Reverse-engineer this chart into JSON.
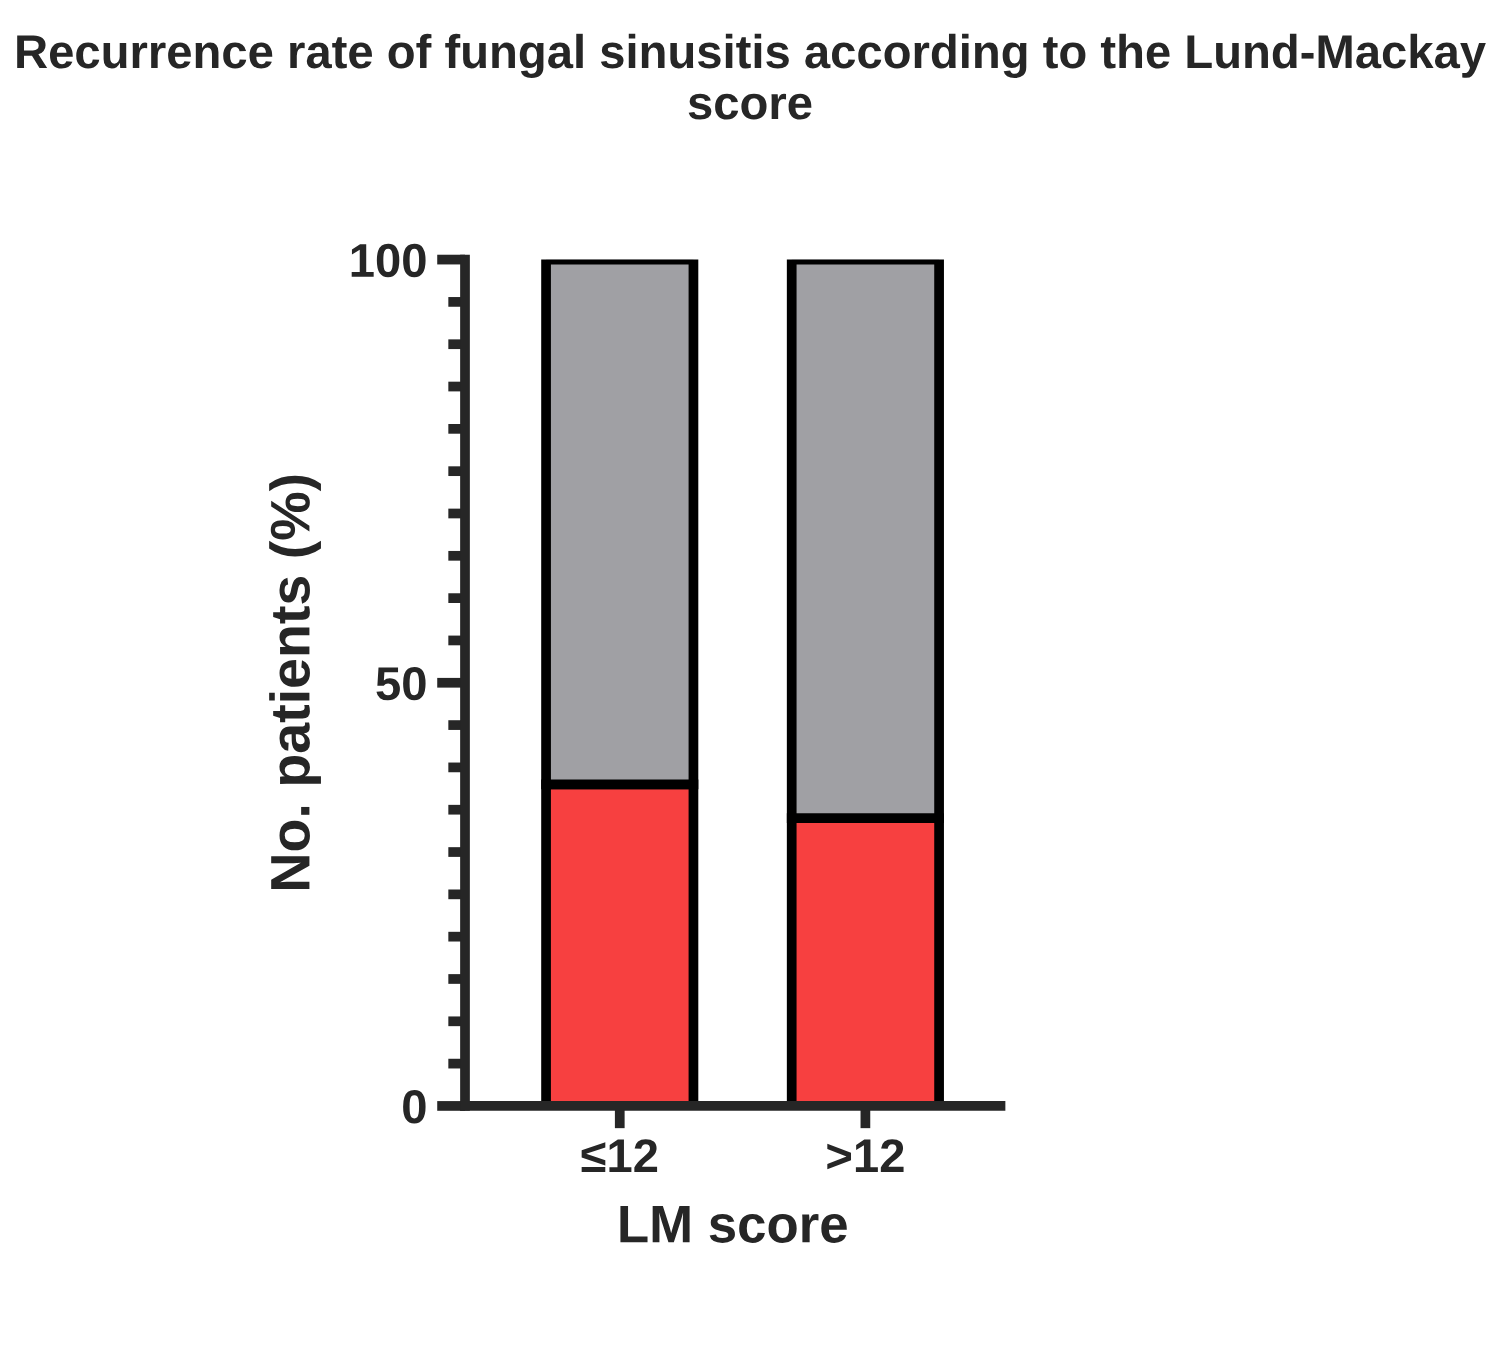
{
  "chart_data": {
    "type": "bar",
    "title": "Recurrence rate of fungal sinusitis according to the Lund-Mackay score",
    "xlabel": "LM score",
    "ylabel": "No. patients (%)",
    "categories": [
      "≤12",
      ">12"
    ],
    "stacked": true,
    "series": [
      {
        "color": "#f74040",
        "values": [
          38,
          34
        ]
      },
      {
        "color": "#a0a0a4",
        "values": [
          62,
          66
        ]
      }
    ],
    "ylim": [
      0,
      100
    ],
    "yticks": [
      0,
      {
        "value": 5,
        "label": null
      },
      {
        "value": 10,
        "label": null
      },
      {
        "value": 15,
        "label": null
      },
      {
        "value": 20,
        "label": null
      },
      {
        "value": 25,
        "label": null
      },
      {
        "value": 30,
        "label": null
      },
      {
        "value": 35,
        "label": null
      },
      {
        "value": 40,
        "label": null
      },
      {
        "value": 45,
        "label": null
      },
      50,
      {
        "value": 55,
        "label": null
      },
      {
        "value": 60,
        "label": null
      },
      {
        "value": 65,
        "label": null
      },
      {
        "value": 70,
        "label": null
      },
      {
        "value": 75,
        "label": null
      },
      {
        "value": 80,
        "label": null
      },
      {
        "value": 85,
        "label": null
      },
      {
        "value": 90,
        "label": null
      },
      {
        "value": 95,
        "label": null
      },
      100
    ],
    "grid": false,
    "legend": false
  }
}
